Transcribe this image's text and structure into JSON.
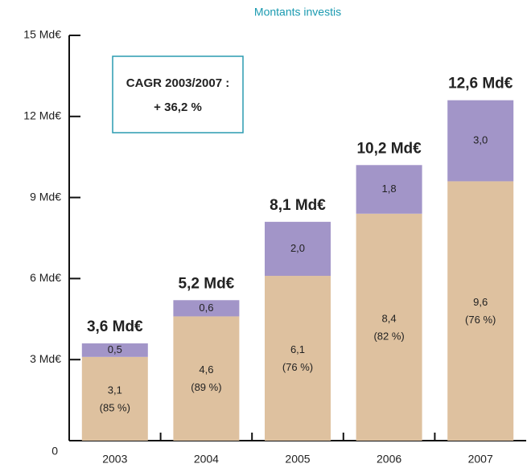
{
  "chart_data": {
    "type": "stacked_bar",
    "title": "Montants investis",
    "categories": [
      "2003",
      "2004",
      "2005",
      "2006",
      "2007"
    ],
    "series": [
      {
        "color": "#dec19f",
        "values": [
          3.1,
          4.6,
          6.1,
          8.4,
          9.6
        ],
        "value_labels": [
          "3,1",
          "4,6",
          "6,1",
          "8,4",
          "9,6"
        ],
        "shares": [
          85,
          89,
          76,
          82,
          76
        ],
        "share_labels": [
          "(85 %)",
          "(89 %)",
          "(76 %)",
          "(82 %)",
          "(76 %)"
        ]
      },
      {
        "color": "#a295c8",
        "values": [
          0.5,
          0.6,
          2.0,
          1.8,
          3.0
        ],
        "value_labels": [
          "0,5",
          "0,6",
          "2,0",
          "1,8",
          "3,0"
        ]
      }
    ],
    "totals": [
      3.6,
      5.2,
      8.1,
      10.2,
      12.6
    ],
    "total_labels": [
      "3,6 Md€",
      "5,2 Md€",
      "8,1 Md€",
      "10,2 Md€",
      "12,6 Md€"
    ],
    "annotation": [
      "CAGR 2003/2007 :",
      "+ 36,2 %"
    ],
    "ylim": [
      0,
      15
    ],
    "yticks": [
      0,
      {
        "value": 3,
        "label": "3 Md€"
      },
      {
        "value": 6,
        "label": "6 Md€"
      },
      {
        "value": 9,
        "label": "9 Md€"
      },
      {
        "value": 12,
        "label": "12 Md€"
      },
      {
        "value": 15,
        "label": "15 Md€"
      }
    ],
    "grid": false
  }
}
